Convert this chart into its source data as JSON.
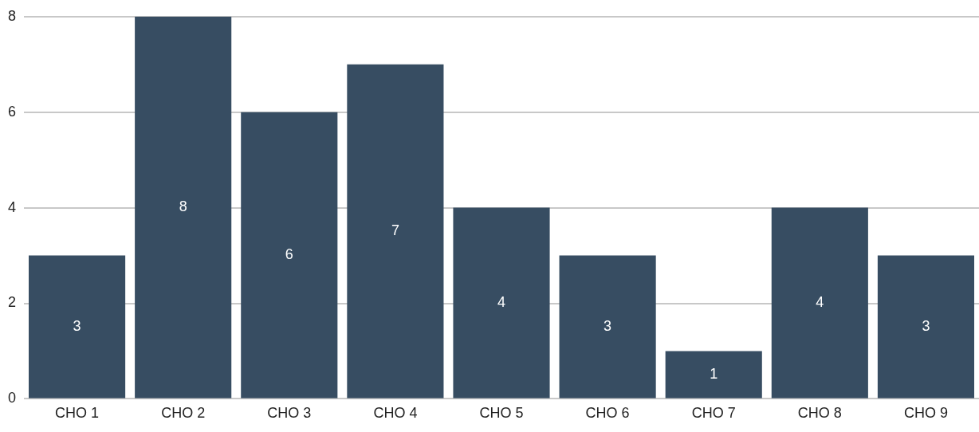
{
  "chart_data": {
    "type": "bar",
    "categories": [
      "CHO 1",
      "CHO 2",
      "CHO 3",
      "CHO 4",
      "CHO 5",
      "CHO 6",
      "CHO 7",
      "CHO 8",
      "CHO 9"
    ],
    "values": [
      3,
      8,
      6,
      7,
      4,
      3,
      1,
      4,
      3
    ],
    "color": "#374d62",
    "ylim": [
      0,
      8
    ],
    "yticks": [
      0,
      2,
      4,
      6,
      8
    ],
    "grid": "y",
    "data_labels": true
  }
}
